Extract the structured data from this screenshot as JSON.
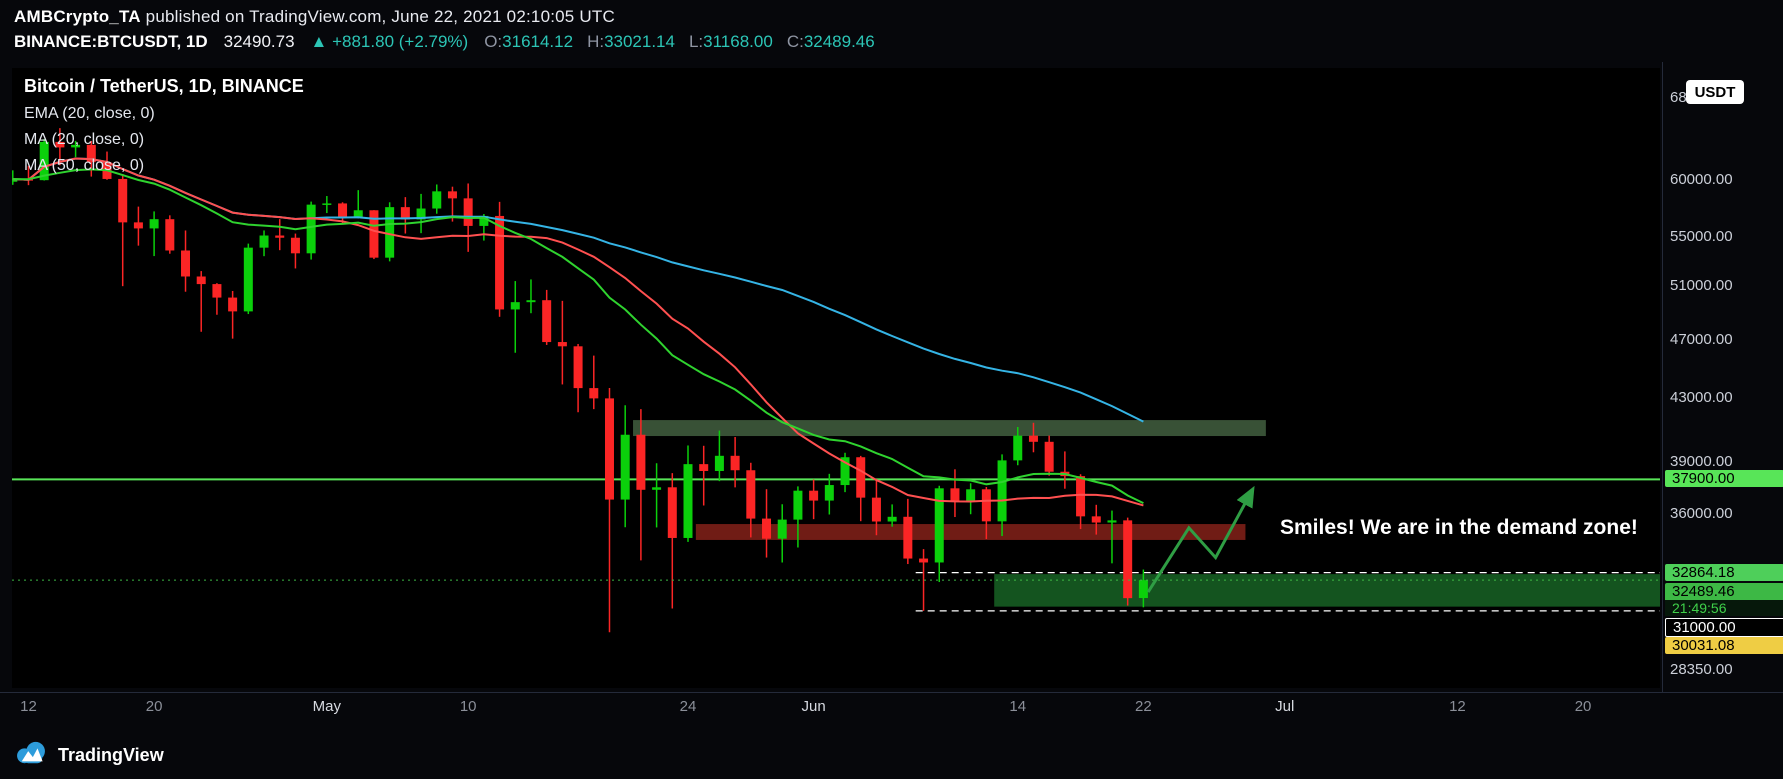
{
  "header": {
    "author": "AMBCrypto_TA",
    "published": " published on TradingView.com, June 22, 2021 02:10:05 UTC",
    "symbol": "BINANCE:BTCUSDT, 1D",
    "last_price": "32490.73",
    "arrow": "▲",
    "change": "+881.80 (+2.79%)",
    "ohlc": [
      {
        "label": "O:",
        "value": "31614.12"
      },
      {
        "label": "H:",
        "value": "33021.14"
      },
      {
        "label": "L:",
        "value": "31168.00"
      },
      {
        "label": "C:",
        "value": "32489.46"
      }
    ]
  },
  "legend": {
    "title": "Bitcoin / TetherUS, 1D, BINANCE",
    "indicators": [
      "EMA (20, close, 0)",
      "MA (20, close, 0)",
      "MA (50, close, 0)"
    ]
  },
  "price_axis": {
    "currency_button": "USDT"
  },
  "footer": {
    "brand": "TradingView"
  },
  "chart_data": {
    "type": "candlestick",
    "title": "Bitcoin / TetherUS, 1D, BINANCE",
    "day_zero_date": "2021-04-12",
    "first_candle_day": -1,
    "view": {
      "price_top": 71100,
      "price_bottom": 27550,
      "day_left": -1.05,
      "day_right": 103.9,
      "scale": "log"
    },
    "colors": {
      "up": "#0bd00b",
      "down": "#fb2525",
      "ema20": "#2fd32f",
      "ma20": "#ff5050",
      "ma50": "#35b4e5",
      "current_line": "#3db845",
      "teal": "#2cc5b6"
    },
    "candles": [
      [
        59748,
        60800,
        59470,
        59988
      ],
      [
        59988,
        61219,
        59437,
        59893
      ],
      [
        59893,
        63774,
        59859,
        63503
      ],
      [
        63503,
        64854,
        61270,
        62970
      ],
      [
        62970,
        63600,
        62036,
        63216
      ],
      [
        63216,
        63594,
        60222,
        61572
      ],
      [
        61572,
        62572,
        59930,
        60005
      ],
      [
        60005,
        60460,
        50931,
        56150
      ],
      [
        56150,
        57520,
        54187,
        55633
      ],
      [
        55633,
        57100,
        53329,
        56425
      ],
      [
        56425,
        56757,
        53522,
        53787
      ],
      [
        53787,
        55459,
        50500,
        51690
      ],
      [
        51690,
        52120,
        47500,
        51093
      ],
      [
        51093,
        51167,
        48753,
        50050
      ],
      [
        50050,
        50558,
        47004,
        49004
      ],
      [
        49004,
        54356,
        48805,
        54021
      ],
      [
        54021,
        55460,
        53321,
        55033
      ],
      [
        55033,
        56428,
        53813,
        54846
      ],
      [
        54846,
        55195,
        52330,
        53555
      ],
      [
        53555,
        57963,
        53046,
        57694
      ],
      [
        57694,
        58458,
        56956,
        57800
      ],
      [
        57800,
        57902,
        56050,
        56600
      ],
      [
        56600,
        58986,
        56483,
        57200
      ],
      [
        57200,
        57212,
        53087,
        53200
      ],
      [
        53200,
        57900,
        52900,
        57473
      ],
      [
        57473,
        58360,
        55200,
        56400
      ],
      [
        56400,
        58650,
        55231,
        57352
      ],
      [
        57352,
        59500,
        56900,
        58878
      ],
      [
        58878,
        59300,
        56216,
        58250
      ],
      [
        58250,
        59592,
        53674,
        55847
      ],
      [
        55847,
        56872,
        54608,
        56704
      ],
      [
        56704,
        57939,
        48600,
        49150
      ],
      [
        49150,
        51330,
        46000,
        49700
      ],
      [
        49700,
        51459,
        48868,
        49850
      ],
      [
        49850,
        50640,
        46555,
        46760
      ],
      [
        46760,
        49800,
        43825,
        46456
      ],
      [
        46456,
        46623,
        42001,
        43580
      ],
      [
        43580,
        45800,
        42200,
        42900
      ],
      [
        42900,
        43584,
        30000,
        36750
      ],
      [
        36750,
        42451,
        35228,
        40580
      ],
      [
        40580,
        42200,
        33488,
        37304
      ],
      [
        37304,
        38850,
        35217,
        37447
      ],
      [
        37447,
        38270,
        31111,
        34655
      ],
      [
        34655,
        39920,
        34447,
        38796
      ],
      [
        38796,
        39900,
        36419,
        38392
      ],
      [
        38392,
        40840,
        37800,
        39294
      ],
      [
        39294,
        40440,
        37442,
        38436
      ],
      [
        38436,
        38877,
        34684,
        35697
      ],
      [
        35697,
        37338,
        33632,
        34616
      ],
      [
        34616,
        36488,
        33379,
        35641
      ],
      [
        35641,
        37499,
        34153,
        37253
      ],
      [
        37253,
        37894,
        35666,
        36694
      ],
      [
        36694,
        38225,
        35920,
        37575
      ],
      [
        37575,
        39476,
        37170,
        39208
      ],
      [
        39208,
        39289,
        35555,
        36859
      ],
      [
        36859,
        37917,
        34800,
        35538
      ],
      [
        35538,
        36480,
        35258,
        35795
      ],
      [
        35795,
        36790,
        33300,
        33581
      ],
      [
        33581,
        34068,
        31000,
        33380
      ],
      [
        33380,
        37534,
        32396,
        37388
      ],
      [
        37388,
        38491,
        35782,
        36675
      ],
      [
        36675,
        37680,
        35936,
        37332
      ],
      [
        37332,
        37463,
        34600,
        35546
      ],
      [
        35546,
        39380,
        34757,
        39020
      ],
      [
        39020,
        41064,
        38730,
        40525
      ],
      [
        40525,
        41330,
        39506,
        40144
      ],
      [
        40144,
        40527,
        38116,
        38349
      ],
      [
        38349,
        39559,
        37365,
        38092
      ],
      [
        38092,
        38202,
        35129,
        35819
      ],
      [
        35819,
        36457,
        34833,
        35483
      ],
      [
        35483,
        36137,
        33336,
        35600
      ],
      [
        35600,
        35750,
        31251,
        31608
      ],
      [
        31614,
        33021,
        31168,
        32489
      ]
    ],
    "x_axis": {
      "labels": [
        {
          "text": "12",
          "day": 0
        },
        {
          "text": "20",
          "day": 8
        },
        {
          "text": "May",
          "day": 19,
          "major": true
        },
        {
          "text": "10",
          "day": 28
        },
        {
          "text": "24",
          "day": 42
        },
        {
          "text": "Jun",
          "day": 50,
          "major": true
        },
        {
          "text": "14",
          "day": 63
        },
        {
          "text": "22",
          "day": 71
        },
        {
          "text": "Jul",
          "day": 80,
          "major": true
        },
        {
          "text": "12",
          "day": 91
        },
        {
          "text": "20",
          "day": 99
        }
      ]
    },
    "y_axis": {
      "ticks": [
        {
          "label": "68000.00",
          "price": 68000
        },
        {
          "label": "60000.00",
          "price": 60000
        },
        {
          "label": "55000.00",
          "price": 55000
        },
        {
          "label": "51000.00",
          "price": 51000
        },
        {
          "label": "47000.00",
          "price": 47000
        },
        {
          "label": "43000.00",
          "price": 43000
        },
        {
          "label": "39000.00",
          "price": 39000
        },
        {
          "label": "36000.00",
          "price": 36000
        },
        {
          "label": "28350.00",
          "price": 28350
        }
      ],
      "chips": [
        {
          "label": "37900.00",
          "price": 37900,
          "bg": "#58e558",
          "fg": "#000000",
          "name": "level-37900-label"
        },
        {
          "label": "32864.18",
          "price": 32864.18,
          "bg": "#4ecf5a",
          "fg": "#000000",
          "name": "level-32864-label"
        },
        {
          "label": "32489.46",
          "price": 32489.46,
          "bg": "#3db845",
          "fg": "#000000",
          "sub": "21:49:56",
          "sub_fg": "#3fd14a",
          "sub_bg": "#06180b",
          "name": "current-price-label"
        },
        {
          "label": "31000.00",
          "price": 31000,
          "bg": "#000000",
          "fg": "#ffffff",
          "border": "#ffffff",
          "name": "level-31000-label"
        },
        {
          "label": "30031.08",
          "price": 30031.08,
          "bg": "#efcd44",
          "fg": "#000000",
          "name": "alert-30031-label"
        }
      ]
    },
    "current_price": {
      "price": 32489.46,
      "label": "32489.46",
      "countdown": "21:49:56"
    },
    "annotations": {
      "boxes": [
        {
          "name": "supply-zone-box",
          "price_top": 41500,
          "price_bottom": 40500,
          "day_start": 38.5,
          "day_end": 78.8,
          "color": "#3e5a3c",
          "opacity": 0.9
        },
        {
          "name": "broken-support-box",
          "price_top": 35400,
          "price_bottom": 34550,
          "day_start": 42.5,
          "day_end": 77.5,
          "color": "#7c1f17",
          "opacity": 0.9
        },
        {
          "name": "demand-zone-box",
          "price_top": 32790,
          "price_bottom": 31200,
          "day_start": 61.5,
          "day_end": 104,
          "color": "#176023",
          "opacity": 0.88
        }
      ],
      "level_line": {
        "name": "resistance-line-37900",
        "price": 37900,
        "color": "#58e558"
      },
      "dashed_lines": [
        {
          "name": "demand-zone-top-line",
          "price": 32864.18,
          "day_start": 56.5
        },
        {
          "name": "demand-zone-bottom-line",
          "price": 31000,
          "day_start": 56.5
        }
      ],
      "arrow": {
        "name": "bounce-arrow",
        "color": "#2f9e44",
        "points": [
          {
            "d": 71.3,
            "p": 31900
          },
          {
            "d": 73.9,
            "p": 35200
          },
          {
            "d": 75.6,
            "p": 33630
          },
          {
            "d": 77.9,
            "p": 37230
          }
        ]
      },
      "note": {
        "text": "Smiles! We are in the demand zone!"
      }
    }
  }
}
